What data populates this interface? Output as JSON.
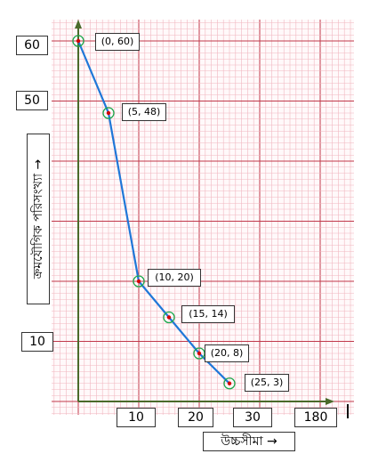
{
  "chart_data": {
    "type": "line",
    "title": "",
    "xlabel": "উচ্চসীমা →",
    "ylabel": "ক্রমযৌগিক পরিসংখ্যা →",
    "points": [
      {
        "x": 0,
        "y": 60,
        "label": "(0, 60)"
      },
      {
        "x": 5,
        "y": 48,
        "label": "(5, 48)"
      },
      {
        "x": 10,
        "y": 20,
        "label": "(10, 20)"
      },
      {
        "x": 15,
        "y": 14,
        "label": "(15, 14)"
      },
      {
        "x": 20,
        "y": 8,
        "label": "(20, 8)"
      },
      {
        "x": 25,
        "y": 3,
        "label": "(25, 3)"
      }
    ],
    "x_tick_labels": [
      "10",
      "20",
      "30",
      "180"
    ],
    "y_tick_labels": [
      "60",
      "50",
      "10"
    ],
    "xlim": [
      0,
      40
    ],
    "ylim": [
      -1,
      62
    ],
    "grid": true,
    "colors": {
      "line": "#1f77d8",
      "point": "#d40000",
      "marker_ring": "#1aa84b",
      "grid_major": "#c0394b",
      "grid_minor": "#f1b7c0",
      "axis": "#4a6a2a"
    }
  }
}
